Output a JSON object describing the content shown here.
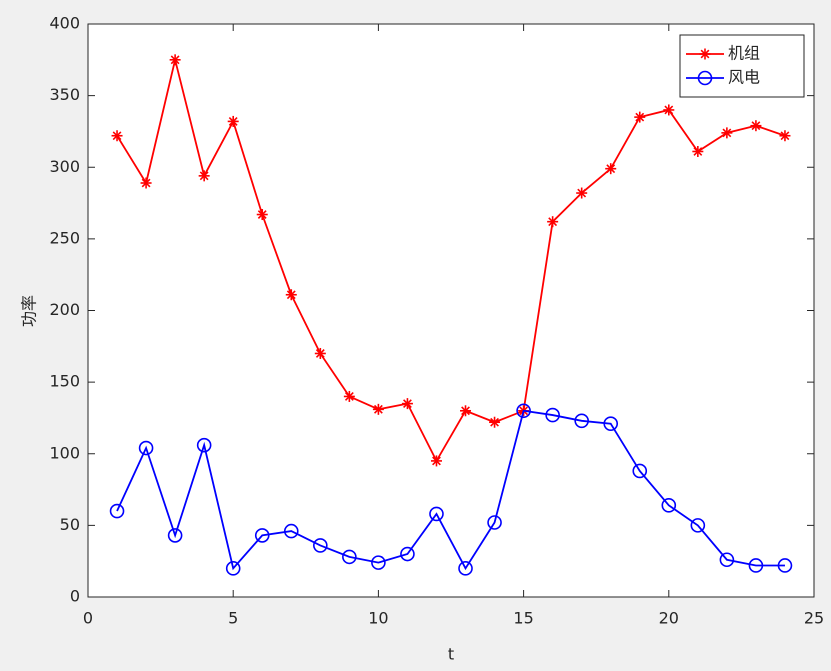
{
  "chart_data": {
    "type": "line",
    "xlabel": "t",
    "ylabel": "功率",
    "x": [
      1,
      2,
      3,
      4,
      5,
      6,
      7,
      8,
      9,
      10,
      11,
      12,
      13,
      14,
      15,
      16,
      17,
      18,
      19,
      20,
      21,
      22,
      23,
      24
    ],
    "series": [
      {
        "name": "机组",
        "color": "#ff0000",
        "marker": "asterisk",
        "values": [
          322,
          289,
          375,
          294,
          332,
          267,
          211,
          170,
          140,
          131,
          135,
          95,
          130,
          122,
          130,
          262,
          282,
          299,
          335,
          340,
          311,
          324,
          329,
          322
        ]
      },
      {
        "name": "风电",
        "color": "#0000ff",
        "marker": "circle",
        "values": [
          60,
          104,
          43,
          106,
          20,
          43,
          46,
          36,
          28,
          24,
          30,
          58,
          20,
          52,
          130,
          127,
          123,
          121,
          88,
          64,
          50,
          26,
          22,
          22
        ]
      }
    ],
    "xlim": [
      0,
      25
    ],
    "xticks": [
      0,
      5,
      10,
      15,
      20,
      25
    ],
    "ylim": [
      0,
      400
    ],
    "yticks": [
      0,
      50,
      100,
      150,
      200,
      250,
      300,
      350,
      400
    ],
    "legend": "northeast"
  }
}
